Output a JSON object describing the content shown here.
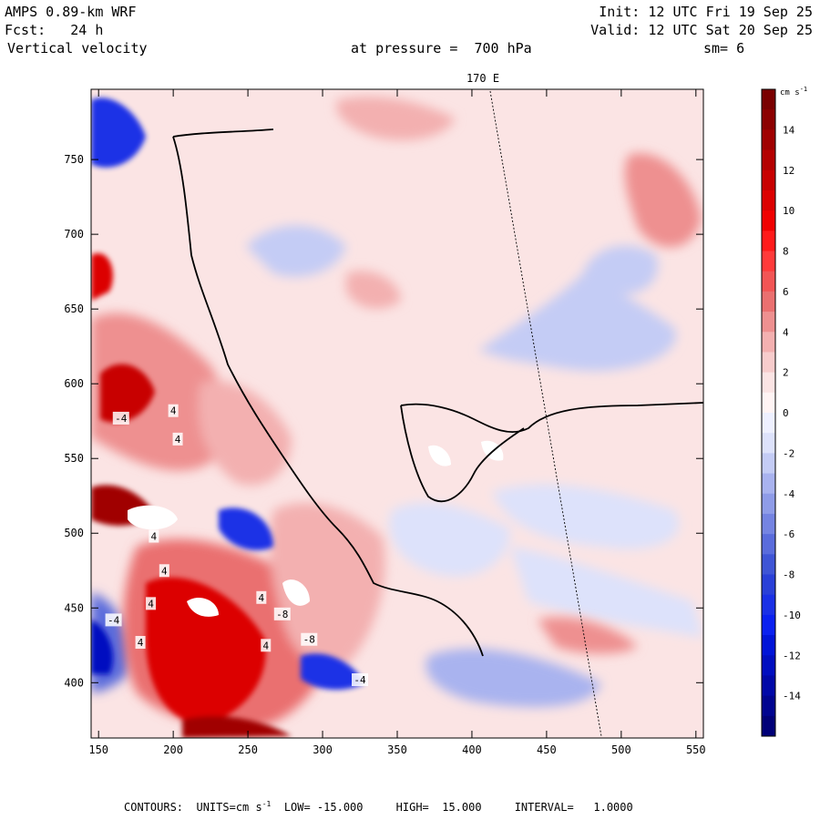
{
  "header": {
    "model": "AMPS 0.89-km WRF",
    "init": "Init: 12 UTC Fri 19 Sep 25",
    "forecast": "Fcst:   24 h",
    "valid": "Valid: 12 UTC Sat 20 Sep 25",
    "field": "Vertical velocity",
    "pressure": "at pressure =  700 hPa",
    "smoothing": "sm= 6"
  },
  "chart_data": {
    "type": "heatmap",
    "title": "Vertical velocity",
    "meridian_label": "170 E",
    "xlim": [
      145,
      555
    ],
    "ylim": [
      363,
      797
    ],
    "x_ticks": [
      150,
      200,
      250,
      300,
      350,
      400,
      450,
      500,
      550
    ],
    "y_ticks": [
      400,
      450,
      500,
      550,
      600,
      650,
      700,
      750
    ],
    "colorbar": {
      "units_label": "cm s",
      "units_exp": "-1",
      "range": [
        -16,
        16
      ],
      "tick_labels": [
        14,
        12,
        10,
        8,
        6,
        4,
        2,
        0,
        -2,
        -4,
        -6,
        -8,
        -10,
        -12,
        -14
      ],
      "colors_top_to_bottom": [
        "#7a0000",
        "#8c0000",
        "#a00000",
        "#b40000",
        "#c80000",
        "#dc0000",
        "#f00000",
        "#ff1a1a",
        "#ff3a3a",
        "#f25555",
        "#ea7070",
        "#ee9090",
        "#f3b0b0",
        "#f7cccc",
        "#fbe4e4",
        "#fff4f4",
        "#eef0ff",
        "#dde2fb",
        "#c4ccf5",
        "#a9b3ef",
        "#8f9ce8",
        "#7584e2",
        "#5a6cdc",
        "#3f55d6",
        "#2a40d8",
        "#1a30e6",
        "#0a20f0",
        "#0014d8",
        "#000ec0",
        "#0008a8",
        "#000490",
        "#000078"
      ]
    },
    "contour_labels": [
      {
        "text": "4",
        "x": 200,
        "y": 582
      },
      {
        "text": "4",
        "x": 203,
        "y": 563
      },
      {
        "text": "-4",
        "x": 165,
        "y": 577
      },
      {
        "text": "4",
        "x": 187,
        "y": 498
      },
      {
        "text": "4",
        "x": 194,
        "y": 475
      },
      {
        "text": "4",
        "x": 185,
        "y": 453
      },
      {
        "text": "4",
        "x": 178,
        "y": 427
      },
      {
        "text": "-4",
        "x": 160,
        "y": 442
      },
      {
        "text": "4",
        "x": 259,
        "y": 457
      },
      {
        "text": "-8",
        "x": 273,
        "y": 446
      },
      {
        "text": "4",
        "x": 262,
        "y": 425
      },
      {
        "text": "-8",
        "x": 291,
        "y": 429
      },
      {
        "text": "-4",
        "x": 325,
        "y": 402
      }
    ],
    "footer": {
      "units_label": "CONTOURS:  UNITS=cm s",
      "units_exp": "-1",
      "low": "LOW= -15.000",
      "high": "HIGH=  15.000",
      "interval": "INTERVAL=   1.0000"
    }
  }
}
